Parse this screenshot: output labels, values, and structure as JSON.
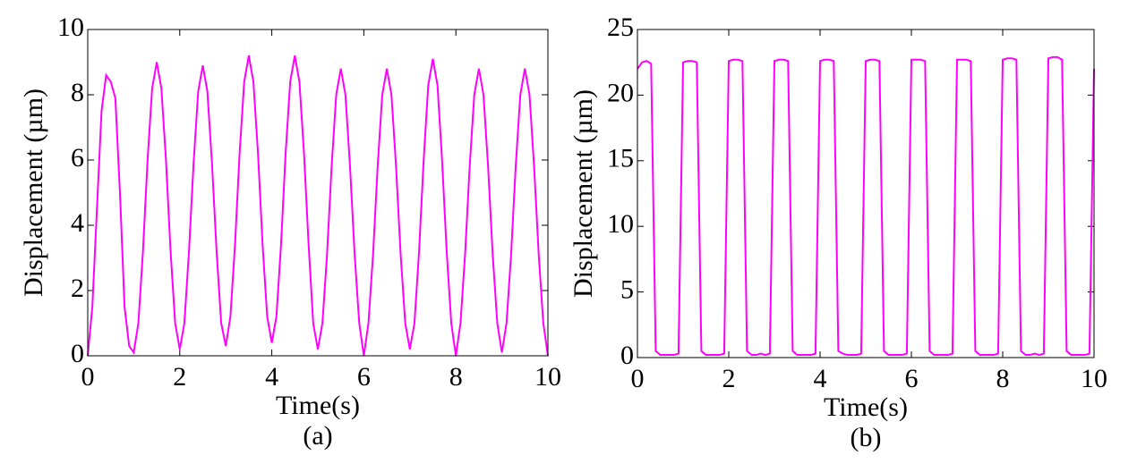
{
  "chart_data": [
    {
      "type": "line",
      "caption": "(a)",
      "xlabel": "Time(s)",
      "ylabel": "Displacement (µm)",
      "color": "#ff00ff",
      "xlim": [
        0,
        10
      ],
      "ylim": [
        0,
        10
      ],
      "xticks": [
        0,
        2,
        4,
        6,
        8,
        10
      ],
      "yticks": [
        0,
        2,
        4,
        6,
        8,
        10
      ],
      "x": [
        0,
        0.1,
        0.2,
        0.3,
        0.4,
        0.5,
        0.6,
        0.7,
        0.8,
        0.9,
        1,
        1.1,
        1.2,
        1.3,
        1.4,
        1.5,
        1.6,
        1.7,
        1.8,
        1.9,
        2,
        2.1,
        2.2,
        2.3,
        2.4,
        2.5,
        2.6,
        2.7,
        2.8,
        2.9,
        3,
        3.1,
        3.2,
        3.3,
        3.4,
        3.5,
        3.6,
        3.7,
        3.8,
        3.9,
        4,
        4.1,
        4.2,
        4.3,
        4.4,
        4.5,
        4.6,
        4.7,
        4.8,
        4.9,
        5,
        5.1,
        5.2,
        5.3,
        5.4,
        5.5,
        5.6,
        5.7,
        5.8,
        5.9,
        6,
        6.1,
        6.2,
        6.3,
        6.4,
        6.5,
        6.6,
        6.7,
        6.8,
        6.9,
        7,
        7.1,
        7.2,
        7.3,
        7.4,
        7.5,
        7.6,
        7.7,
        7.8,
        7.9,
        8,
        8.1,
        8.2,
        8.3,
        8.4,
        8.5,
        8.6,
        8.7,
        8.8,
        8.9,
        9,
        9.1,
        9.2,
        9.3,
        9.4,
        9.5,
        9.6,
        9.7,
        9.8,
        9.9,
        10
      ],
      "values": [
        0.0,
        1.5,
        4.5,
        7.5,
        8.6,
        8.4,
        7.9,
        5.0,
        1.5,
        0.3,
        0.1,
        1.0,
        3.2,
        6.0,
        8.2,
        9.0,
        8.2,
        6.0,
        3.2,
        1.0,
        0.2,
        1.0,
        3.2,
        5.9,
        8.1,
        8.9,
        8.1,
        5.9,
        3.2,
        1.0,
        0.3,
        1.2,
        3.4,
        6.2,
        8.4,
        9.2,
        8.4,
        6.2,
        3.4,
        1.2,
        0.4,
        1.2,
        3.4,
        6.2,
        8.4,
        9.2,
        8.4,
        6.2,
        3.4,
        1.0,
        0.2,
        1.0,
        3.1,
        5.8,
        8.0,
        8.8,
        8.0,
        5.8,
        3.1,
        1.0,
        0.0,
        1.0,
        3.1,
        5.8,
        8.0,
        8.8,
        8.0,
        5.8,
        3.1,
        1.0,
        0.2,
        1.0,
        3.2,
        6.0,
        8.3,
        9.1,
        8.3,
        6.0,
        3.2,
        1.0,
        0.0,
        1.0,
        3.1,
        5.8,
        8.0,
        8.8,
        8.0,
        5.8,
        3.1,
        1.0,
        0.1,
        1.0,
        3.1,
        5.8,
        8.0,
        8.8,
        8.0,
        5.8,
        3.1,
        1.0,
        0.0
      ]
    },
    {
      "type": "line",
      "caption": "(b)",
      "xlabel": "Time(s)",
      "ylabel": "Displacement (µm)",
      "color": "#ff00ff",
      "xlim": [
        0,
        10
      ],
      "ylim": [
        0,
        25
      ],
      "xticks": [
        0,
        2,
        4,
        6,
        8,
        10
      ],
      "yticks": [
        0,
        5,
        10,
        15,
        20,
        25
      ],
      "x": [
        0,
        0.1,
        0.2,
        0.3,
        0.4,
        0.5,
        0.6,
        0.7,
        0.8,
        0.9,
        1,
        1.1,
        1.2,
        1.3,
        1.4,
        1.5,
        1.6,
        1.7,
        1.8,
        1.9,
        2,
        2.1,
        2.2,
        2.3,
        2.4,
        2.5,
        2.6,
        2.7,
        2.8,
        2.9,
        3,
        3.1,
        3.2,
        3.3,
        3.4,
        3.5,
        3.6,
        3.7,
        3.8,
        3.9,
        4,
        4.1,
        4.2,
        4.3,
        4.4,
        4.5,
        4.6,
        4.7,
        4.8,
        4.9,
        5,
        5.1,
        5.2,
        5.3,
        5.4,
        5.5,
        5.6,
        5.7,
        5.8,
        5.9,
        6,
        6.1,
        6.2,
        6.3,
        6.4,
        6.5,
        6.6,
        6.7,
        6.8,
        6.9,
        7,
        7.1,
        7.2,
        7.3,
        7.4,
        7.5,
        7.6,
        7.7,
        7.8,
        7.9,
        8,
        8.1,
        8.2,
        8.3,
        8.4,
        8.5,
        8.6,
        8.7,
        8.8,
        8.9,
        9,
        9.1,
        9.2,
        9.3,
        9.4,
        9.5,
        9.6,
        9.7,
        9.8,
        9.9,
        10
      ],
      "values": [
        22.0,
        22.5,
        22.6,
        22.4,
        0.5,
        0.2,
        0.2,
        0.2,
        0.2,
        0.3,
        22.5,
        22.6,
        22.6,
        22.5,
        0.5,
        0.2,
        0.2,
        0.2,
        0.2,
        0.3,
        22.6,
        22.7,
        22.7,
        22.6,
        0.5,
        0.2,
        0.2,
        0.3,
        0.2,
        0.3,
        22.6,
        22.7,
        22.7,
        22.6,
        0.5,
        0.2,
        0.2,
        0.2,
        0.2,
        0.3,
        22.6,
        22.7,
        22.7,
        22.6,
        0.5,
        0.3,
        0.2,
        0.2,
        0.2,
        0.3,
        22.6,
        22.7,
        22.7,
        22.6,
        0.5,
        0.2,
        0.2,
        0.2,
        0.2,
        0.3,
        22.7,
        22.7,
        22.7,
        22.6,
        0.5,
        0.2,
        0.2,
        0.2,
        0.2,
        0.3,
        22.7,
        22.7,
        22.7,
        22.6,
        0.5,
        0.2,
        0.2,
        0.2,
        0.2,
        0.3,
        22.7,
        22.8,
        22.8,
        22.7,
        0.5,
        0.2,
        0.2,
        0.3,
        0.2,
        0.3,
        22.8,
        22.9,
        22.9,
        22.7,
        0.5,
        0.2,
        0.2,
        0.2,
        0.2,
        0.3,
        22.0
      ]
    }
  ]
}
